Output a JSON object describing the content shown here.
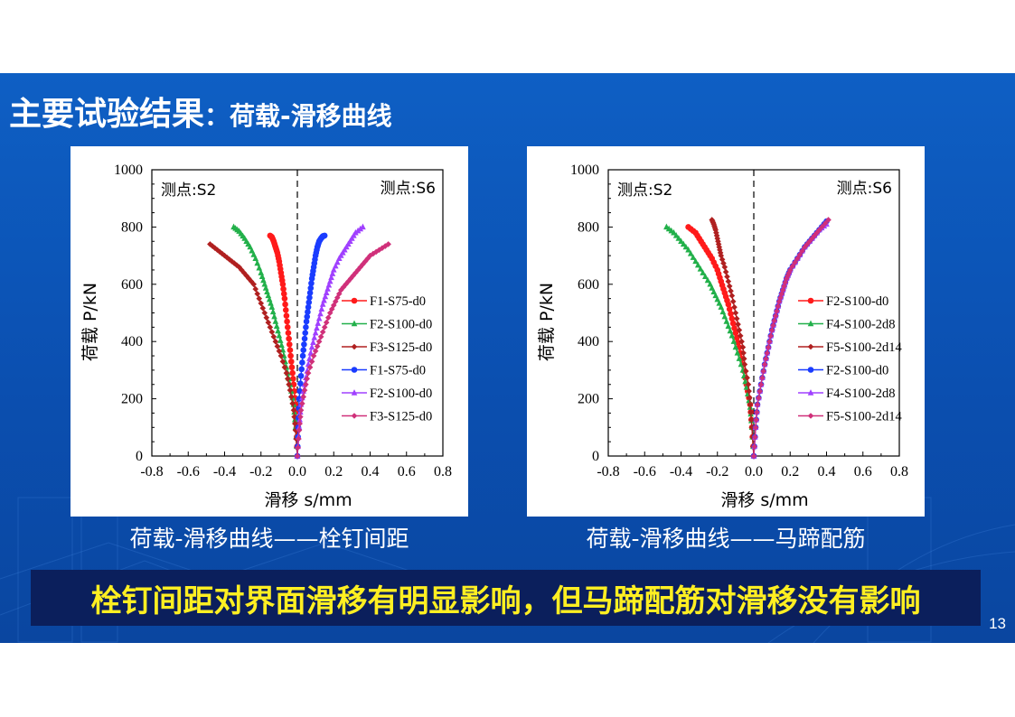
{
  "slide": {
    "title_main": "主要试验结果",
    "title_colon": "：",
    "title_sub": "荷载-滑移曲线",
    "caption_left": "荷载-滑移曲线——栓钉间距",
    "caption_right": "荷载-滑移曲线——马蹄配筋",
    "conclusion": "栓钉间距对界面滑移有明显影响，但马蹄配筋对滑移没有影响",
    "page_number": "13"
  },
  "colors": {
    "band_top": "#0e5fc4",
    "conclusion_bg": "#0b1f5c",
    "conclusion_text": "#ffef22",
    "red": "#ff1a1a",
    "green": "#22b04a",
    "darkred": "#b02020",
    "blue": "#1a3cff",
    "purple": "#a040ff",
    "magenta": "#d0307a"
  },
  "chart_data": [
    {
      "type": "scatter",
      "title": "",
      "xlabel": "滑移 s/mm",
      "ylabel": "荷载 P/kN",
      "xlim": [
        -0.8,
        0.8
      ],
      "ylim": [
        0,
        1000
      ],
      "xticks": [
        "-0.8",
        "-0.6",
        "-0.4",
        "-0.2",
        "0.0",
        "0.2",
        "0.4",
        "0.6",
        "0.8"
      ],
      "yticks": [
        "0",
        "200",
        "400",
        "600",
        "800",
        "1000"
      ],
      "annotation_left": "测点:S2",
      "annotation_right": "测点:S6",
      "legend_position": "center-right",
      "series": [
        {
          "name": "F1-S75-d0",
          "color": "#ff1a1a",
          "marker": "circle",
          "x": [
            0,
            -0.005,
            -0.01,
            -0.02,
            -0.03,
            -0.04,
            -0.05,
            -0.06,
            -0.07,
            -0.08,
            -0.09,
            -0.1,
            -0.11,
            -0.12,
            -0.13,
            -0.14,
            -0.15
          ],
          "y": [
            0,
            100,
            180,
            250,
            310,
            370,
            430,
            490,
            550,
            600,
            640,
            680,
            710,
            730,
            750,
            765,
            770
          ]
        },
        {
          "name": "F2-S100-d0",
          "color": "#22b04a",
          "marker": "triangle",
          "x": [
            0,
            -0.01,
            -0.02,
            -0.04,
            -0.06,
            -0.08,
            -0.1,
            -0.12,
            -0.14,
            -0.16,
            -0.18,
            -0.2,
            -0.23,
            -0.26,
            -0.29,
            -0.32,
            -0.35
          ],
          "y": [
            0,
            100,
            180,
            250,
            310,
            370,
            420,
            470,
            520,
            560,
            600,
            640,
            690,
            730,
            760,
            785,
            800
          ]
        },
        {
          "name": "F3-S125-d0",
          "color": "#b02020",
          "marker": "diamond",
          "x": [
            0,
            -0.01,
            -0.02,
            -0.04,
            -0.06,
            -0.09,
            -0.12,
            -0.15,
            -0.18,
            -0.21,
            -0.24,
            -0.28,
            -0.32,
            -0.36,
            -0.4,
            -0.44,
            -0.48
          ],
          "y": [
            0,
            90,
            160,
            230,
            290,
            350,
            400,
            450,
            500,
            550,
            600,
            630,
            660,
            680,
            700,
            720,
            740
          ]
        },
        {
          "name": "F1-S75-d0",
          "color": "#1a3cff",
          "marker": "circle",
          "x": [
            0,
            0.005,
            0.01,
            0.02,
            0.03,
            0.04,
            0.05,
            0.06,
            0.07,
            0.08,
            0.09,
            0.1,
            0.11,
            0.12,
            0.13,
            0.14,
            0.15
          ],
          "y": [
            0,
            100,
            200,
            280,
            350,
            410,
            470,
            520,
            570,
            620,
            660,
            700,
            730,
            750,
            760,
            768,
            770
          ]
        },
        {
          "name": "F2-S100-d0",
          "color": "#a040ff",
          "marker": "triangle",
          "x": [
            0,
            0.01,
            0.02,
            0.04,
            0.06,
            0.08,
            0.1,
            0.12,
            0.14,
            0.16,
            0.18,
            0.2,
            0.23,
            0.26,
            0.29,
            0.32,
            0.36
          ],
          "y": [
            0,
            100,
            180,
            250,
            320,
            380,
            430,
            480,
            530,
            570,
            610,
            650,
            690,
            720,
            750,
            780,
            800
          ]
        },
        {
          "name": "F3-S125-d0",
          "color": "#d0307a",
          "marker": "diamond",
          "x": [
            0,
            0.01,
            0.02,
            0.04,
            0.06,
            0.09,
            0.12,
            0.15,
            0.18,
            0.21,
            0.24,
            0.28,
            0.32,
            0.36,
            0.4,
            0.45,
            0.5
          ],
          "y": [
            0,
            90,
            160,
            230,
            290,
            350,
            400,
            450,
            500,
            540,
            580,
            610,
            640,
            670,
            700,
            720,
            740
          ]
        }
      ]
    },
    {
      "type": "scatter",
      "title": "",
      "xlabel": "滑移 s/mm",
      "ylabel": "荷载 P/kN",
      "xlim": [
        -0.8,
        0.8
      ],
      "ylim": [
        0,
        1000
      ],
      "xticks": [
        "-0.8",
        "-0.6",
        "-0.4",
        "-0.2",
        "0.0",
        "0.2",
        "0.4",
        "0.6",
        "0.8"
      ],
      "yticks": [
        "0",
        "200",
        "400",
        "600",
        "800",
        "1000"
      ],
      "annotation_left": "测点:S2",
      "annotation_right": "测点:S6",
      "legend_position": "center-right",
      "series": [
        {
          "name": "F2-S100-d0",
          "color": "#ff1a1a",
          "marker": "circle",
          "x": [
            0,
            -0.01,
            -0.02,
            -0.04,
            -0.06,
            -0.08,
            -0.1,
            -0.12,
            -0.14,
            -0.16,
            -0.18,
            -0.2,
            -0.23,
            -0.26,
            -0.29,
            -0.32,
            -0.36
          ],
          "y": [
            0,
            100,
            180,
            250,
            320,
            380,
            430,
            480,
            530,
            570,
            610,
            650,
            690,
            720,
            750,
            780,
            800
          ]
        },
        {
          "name": "F4-S100-2d8",
          "color": "#22b04a",
          "marker": "triangle",
          "x": [
            0,
            -0.01,
            -0.02,
            -0.04,
            -0.06,
            -0.09,
            -0.12,
            -0.15,
            -0.18,
            -0.21,
            -0.24,
            -0.28,
            -0.32,
            -0.36,
            -0.4,
            -0.44,
            -0.48
          ],
          "y": [
            0,
            100,
            170,
            240,
            300,
            360,
            420,
            470,
            520,
            560,
            600,
            640,
            680,
            720,
            750,
            780,
            800
          ]
        },
        {
          "name": "F5-S100-2d14",
          "color": "#b02020",
          "marker": "diamond",
          "x": [
            0,
            -0.01,
            -0.02,
            -0.03,
            -0.05,
            -0.06,
            -0.08,
            -0.1,
            -0.12,
            -0.14,
            -0.16,
            -0.18,
            -0.19,
            -0.2,
            -0.21,
            -0.22,
            -0.23
          ],
          "y": [
            0,
            100,
            180,
            250,
            320,
            380,
            440,
            500,
            560,
            610,
            660,
            700,
            730,
            760,
            790,
            810,
            825
          ]
        },
        {
          "name": "F2-S100-d0",
          "color": "#1a3cff",
          "marker": "circle",
          "x": [
            0,
            0.01,
            0.02,
            0.04,
            0.06,
            0.08,
            0.1,
            0.12,
            0.14,
            0.16,
            0.18,
            0.2,
            0.24,
            0.28,
            0.32,
            0.36,
            0.4
          ],
          "y": [
            0,
            100,
            180,
            250,
            320,
            380,
            440,
            490,
            540,
            580,
            620,
            650,
            690,
            730,
            760,
            790,
            820
          ]
        },
        {
          "name": "F4-S100-2d8",
          "color": "#a040ff",
          "marker": "triangle",
          "x": [
            0,
            0.01,
            0.02,
            0.04,
            0.06,
            0.08,
            0.1,
            0.12,
            0.14,
            0.16,
            0.18,
            0.2,
            0.24,
            0.28,
            0.32,
            0.36,
            0.4
          ],
          "y": [
            0,
            100,
            180,
            250,
            320,
            380,
            440,
            490,
            540,
            580,
            620,
            650,
            690,
            730,
            760,
            790,
            810
          ]
        },
        {
          "name": "F5-S100-2d14",
          "color": "#d0307a",
          "marker": "diamond",
          "x": [
            0,
            0.01,
            0.02,
            0.04,
            0.06,
            0.08,
            0.1,
            0.12,
            0.14,
            0.16,
            0.18,
            0.2,
            0.24,
            0.28,
            0.32,
            0.36,
            0.41
          ],
          "y": [
            0,
            100,
            180,
            250,
            320,
            380,
            440,
            490,
            540,
            580,
            620,
            650,
            690,
            730,
            760,
            790,
            825
          ]
        }
      ]
    }
  ]
}
